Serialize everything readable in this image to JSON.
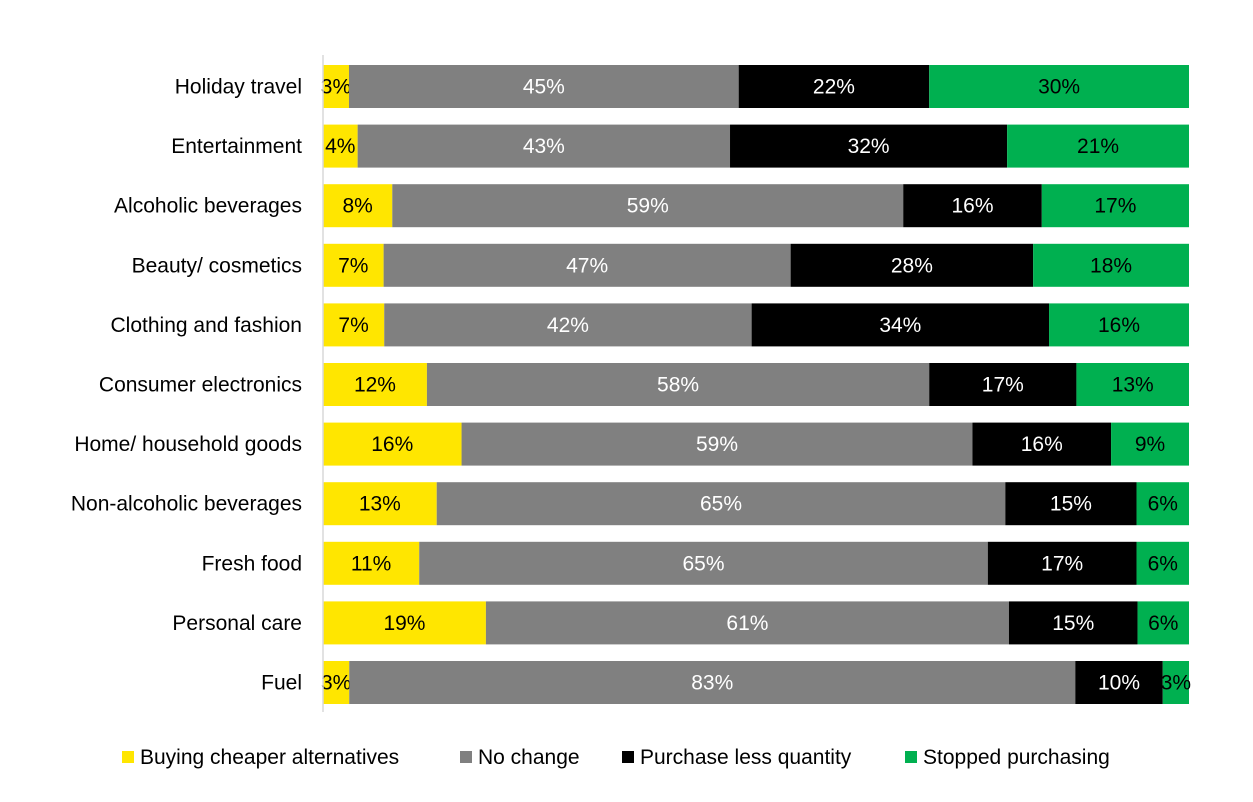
{
  "chart_data": {
    "type": "bar",
    "orientation": "horizontal",
    "stacked": "percent",
    "title": "",
    "xlabel": "",
    "ylabel": "",
    "grid": false,
    "legend_position": "bottom",
    "categories": [
      "Holiday travel",
      "Entertainment",
      "Alcoholic beverages",
      "Beauty/ cosmetics",
      "Clothing and fashion",
      "Consumer electronics",
      "Home/ household goods",
      "Non-alcoholic beverages",
      "Fresh food",
      "Personal care",
      "Fuel"
    ],
    "series": [
      {
        "name": "Buying cheaper alternatives",
        "color": "#FFE600",
        "label_color": "#000000",
        "values": [
          3,
          4,
          8,
          7,
          7,
          12,
          16,
          13,
          11,
          19,
          3
        ]
      },
      {
        "name": "No change",
        "color": "#808080",
        "label_color": "#FFFFFF",
        "values": [
          45,
          43,
          59,
          47,
          42,
          58,
          59,
          65,
          65,
          61,
          83
        ]
      },
      {
        "name": "Purchase less quantity",
        "color": "#000000",
        "label_color": "#FFFFFF",
        "values": [
          22,
          32,
          16,
          28,
          34,
          17,
          16,
          15,
          17,
          15,
          10
        ]
      },
      {
        "name": "Stopped purchasing",
        "color": "#00B050",
        "label_color": "#000000",
        "values": [
          30,
          21,
          17,
          18,
          16,
          13,
          9,
          6,
          6,
          6,
          3
        ]
      }
    ],
    "value_suffix": "%"
  }
}
